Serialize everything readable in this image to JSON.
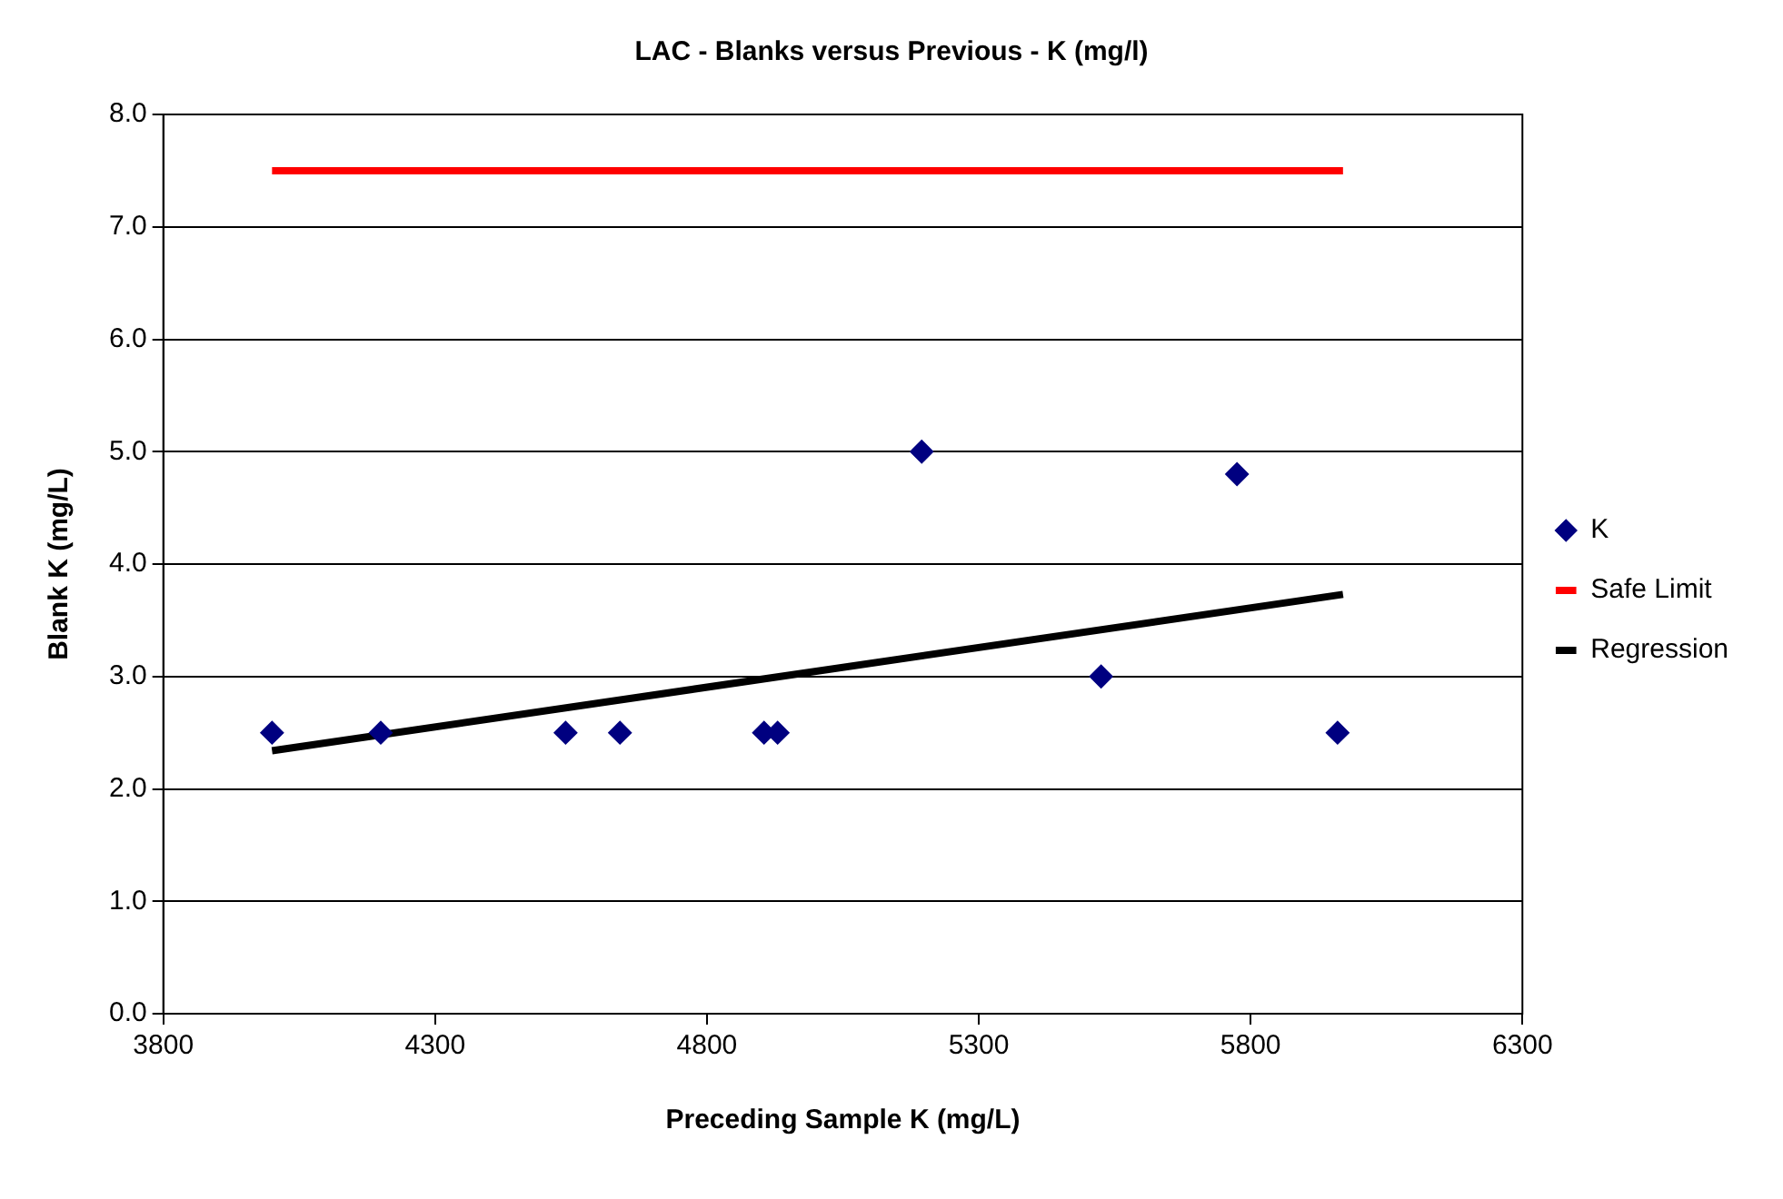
{
  "chart_data": {
    "type": "scatter",
    "title": "LAC - Blanks versus Previous - K (mg/l)",
    "xlabel": "Preceding Sample K (mg/L)",
    "ylabel": "Blank K (mg/L)",
    "xlim": [
      3800,
      6300
    ],
    "xticks": [
      3800,
      4300,
      4800,
      5300,
      5800,
      6300
    ],
    "ylim": [
      0,
      8
    ],
    "yticks": [
      {
        "value": 0,
        "label": "0.0"
      },
      {
        "value": 1,
        "label": "1.0"
      },
      {
        "value": 2,
        "label": "2.0"
      },
      {
        "value": 3,
        "label": "3.0"
      },
      {
        "value": 4,
        "label": "4.0"
      },
      {
        "value": 5,
        "label": "5.0"
      },
      {
        "value": 6,
        "label": "6.0"
      },
      {
        "value": 7,
        "label": "7.0"
      },
      {
        "value": 8,
        "label": "8.0"
      }
    ],
    "grid": "y",
    "legend": "right",
    "series": [
      {
        "name": "K",
        "marker": "diamond",
        "color": "#000080",
        "x": [
          4000,
          4200,
          4540,
          4640,
          4905,
          4930,
          5195,
          5525,
          5775,
          5960
        ],
        "values": [
          2.5,
          2.5,
          2.5,
          2.5,
          2.5,
          2.5,
          5.0,
          3.0,
          4.8,
          2.5
        ]
      },
      {
        "name": "Safe Limit",
        "type": "line",
        "marker": "none",
        "color": "#ff0000",
        "x": [
          4000,
          5970
        ],
        "values": [
          7.5,
          7.5
        ]
      },
      {
        "name": "Regression",
        "type": "line",
        "marker": "none",
        "color": "#000000",
        "x": [
          4000,
          5970
        ],
        "values": [
          2.34,
          3.73
        ]
      }
    ]
  }
}
